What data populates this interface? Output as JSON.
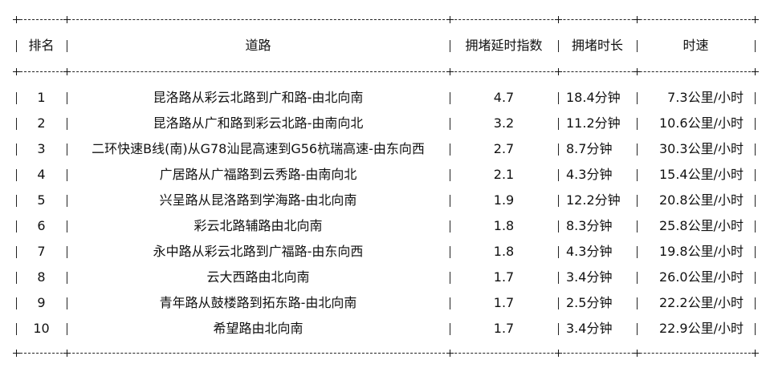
{
  "table": {
    "headers": [
      "排名",
      "道路",
      "拥堵延时指数",
      "拥堵时长",
      "时速"
    ],
    "rows": [
      {
        "rank": "1",
        "road": "昆洛路从彩云北路到广和路-由北向南",
        "index": "4.7",
        "duration": "18.4分钟",
        "speed": "7.3公里/小时"
      },
      {
        "rank": "2",
        "road": "昆洛路从广和路到彩云北路-由南向北",
        "index": "3.2",
        "duration": "11.2分钟",
        "speed": "10.6公里/小时"
      },
      {
        "rank": "3",
        "road": "二环快速B线(南)从G78汕昆高速到G56杭瑞高速-由东向西",
        "index": "2.7",
        "duration": "8.7分钟",
        "speed": "30.3公里/小时"
      },
      {
        "rank": "4",
        "road": "广居路从广福路到云秀路-由南向北",
        "index": "2.1",
        "duration": "4.3分钟",
        "speed": "15.4公里/小时"
      },
      {
        "rank": "5",
        "road": "兴呈路从昆洛路到学海路-由北向南",
        "index": "1.9",
        "duration": "12.2分钟",
        "speed": "20.8公里/小时"
      },
      {
        "rank": "6",
        "road": "彩云北路辅路由北向南",
        "index": "1.8",
        "duration": "8.3分钟",
        "speed": "25.8公里/小时"
      },
      {
        "rank": "7",
        "road": "永中路从彩云北路到广福路-由东向西",
        "index": "1.8",
        "duration": "4.3分钟",
        "speed": "19.8公里/小时"
      },
      {
        "rank": "8",
        "road": "云大西路由北向南",
        "index": "1.7",
        "duration": "3.4分钟",
        "speed": "26.0公里/小时"
      },
      {
        "rank": "9",
        "road": "青年路从鼓楼路到拓东路-由北向南",
        "index": "1.7",
        "duration": "2.5分钟",
        "speed": "22.2公里/小时"
      },
      {
        "rank": "10",
        "road": "希望路由北向南",
        "index": "1.7",
        "duration": "3.4分钟",
        "speed": "22.9公里/小时"
      }
    ]
  }
}
